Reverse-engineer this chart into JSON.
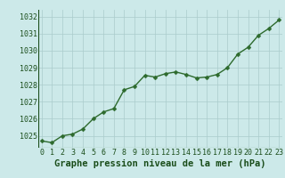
{
  "x": [
    0,
    1,
    2,
    3,
    4,
    5,
    6,
    7,
    8,
    9,
    10,
    11,
    12,
    13,
    14,
    15,
    16,
    17,
    18,
    19,
    20,
    21,
    22,
    23
  ],
  "y": [
    1024.7,
    1024.6,
    1025.0,
    1025.1,
    1025.4,
    1026.0,
    1026.4,
    1026.6,
    1027.7,
    1027.9,
    1028.55,
    1028.45,
    1028.65,
    1028.75,
    1028.6,
    1028.4,
    1028.45,
    1028.6,
    1029.0,
    1029.8,
    1030.2,
    1030.9,
    1031.3,
    1031.8
  ],
  "line_color": "#2d6a2d",
  "marker": "D",
  "marker_size": 2.5,
  "line_width": 1.0,
  "bg_color": "#cce9e9",
  "grid_color": "#aacccc",
  "xlabel": "Graphe pression niveau de la mer (hPa)",
  "xlabel_fontsize": 7.5,
  "xlabel_color": "#1a4d1a",
  "yticks": [
    1025,
    1026,
    1027,
    1028,
    1029,
    1030,
    1031,
    1032
  ],
  "xticks": [
    0,
    1,
    2,
    3,
    4,
    5,
    6,
    7,
    8,
    9,
    10,
    11,
    12,
    13,
    14,
    15,
    16,
    17,
    18,
    19,
    20,
    21,
    22,
    23
  ],
  "ylim": [
    1024.3,
    1032.4
  ],
  "xlim": [
    -0.3,
    23.3
  ],
  "tick_fontsize": 6.0,
  "tick_color": "#1a4d1a",
  "fig_width": 3.2,
  "fig_height": 2.0,
  "dpi": 100
}
